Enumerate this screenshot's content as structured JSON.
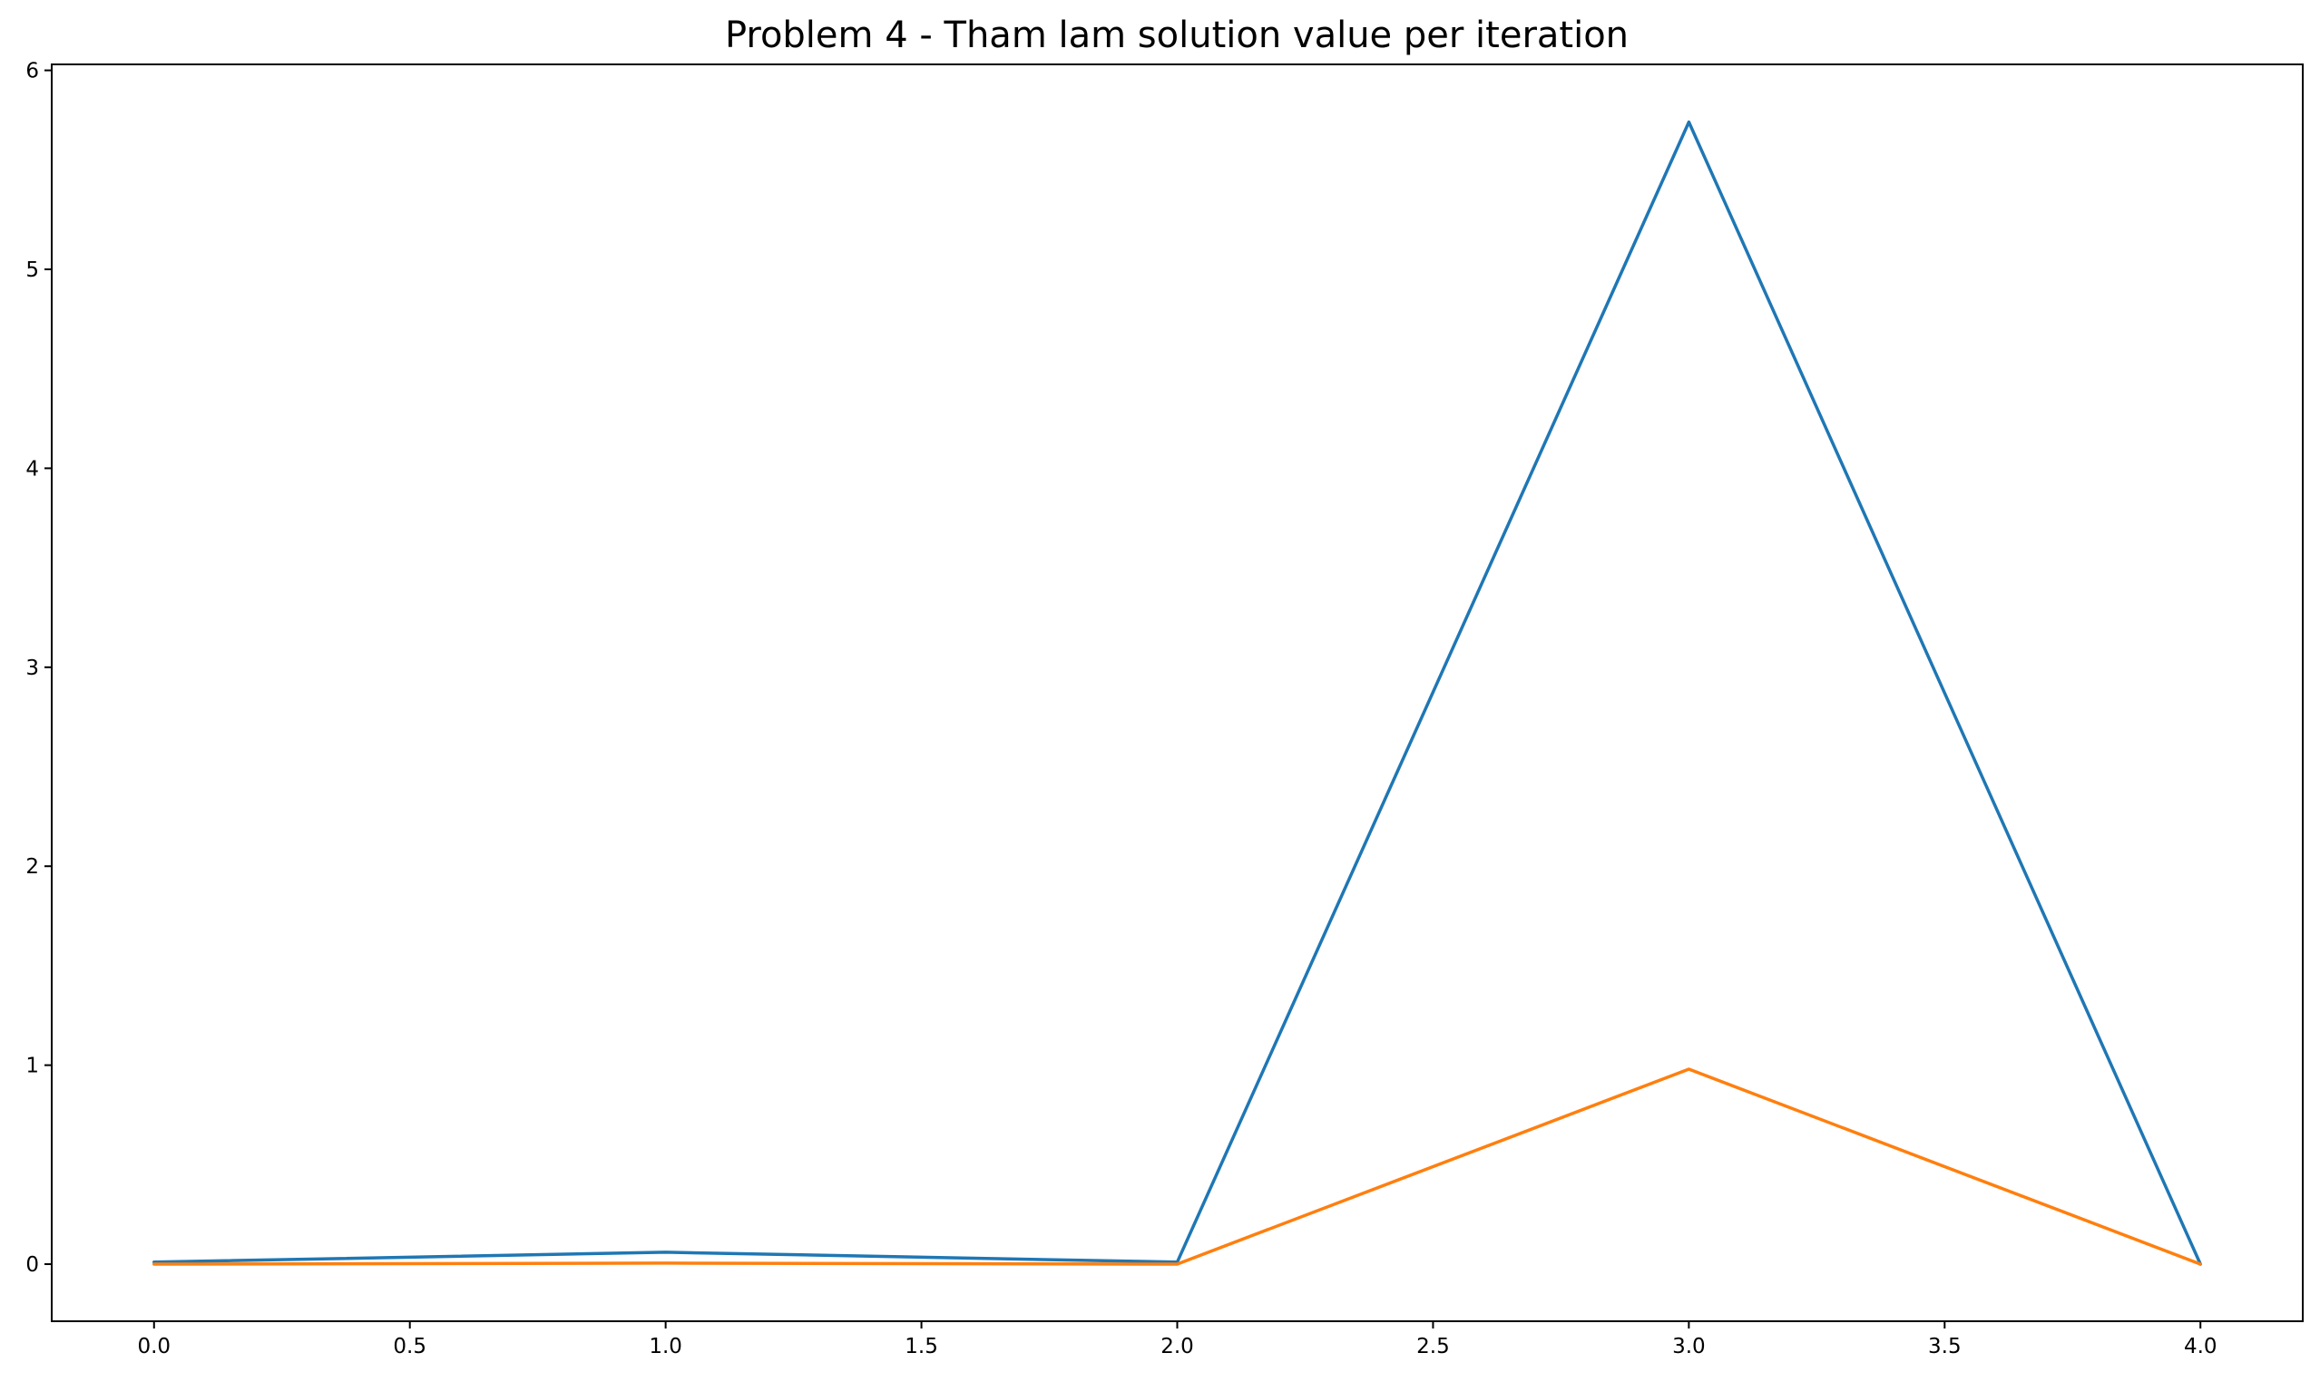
{
  "chart_data": {
    "type": "line",
    "title": "Problem 4 - Tham lam solution value per iteration",
    "xlabel": "",
    "ylabel": "",
    "x": [
      0,
      1,
      2,
      3,
      4
    ],
    "xlim": [
      -0.2,
      4.2
    ],
    "ylim": [
      -0.287,
      6.03
    ],
    "xticks": [
      0.0,
      0.5,
      1.0,
      1.5,
      2.0,
      2.5,
      3.0,
      3.5,
      4.0
    ],
    "xtick_labels": [
      "0.0",
      "0.5",
      "1.0",
      "1.5",
      "2.0",
      "2.5",
      "3.0",
      "3.5",
      "4.0"
    ],
    "yticks": [
      0,
      1,
      2,
      3,
      4,
      5,
      6
    ],
    "ytick_labels": [
      "0",
      "1",
      "2",
      "3",
      "4",
      "5",
      "6"
    ],
    "grid": false,
    "series": [
      {
        "color": "#1f77b4",
        "values": [
          0.01,
          0.06,
          0.01,
          5.74,
          0.0
        ]
      },
      {
        "color": "#ff7f0e",
        "values": [
          0.0,
          0.005,
          0.0,
          0.98,
          0.0
        ]
      }
    ]
  }
}
